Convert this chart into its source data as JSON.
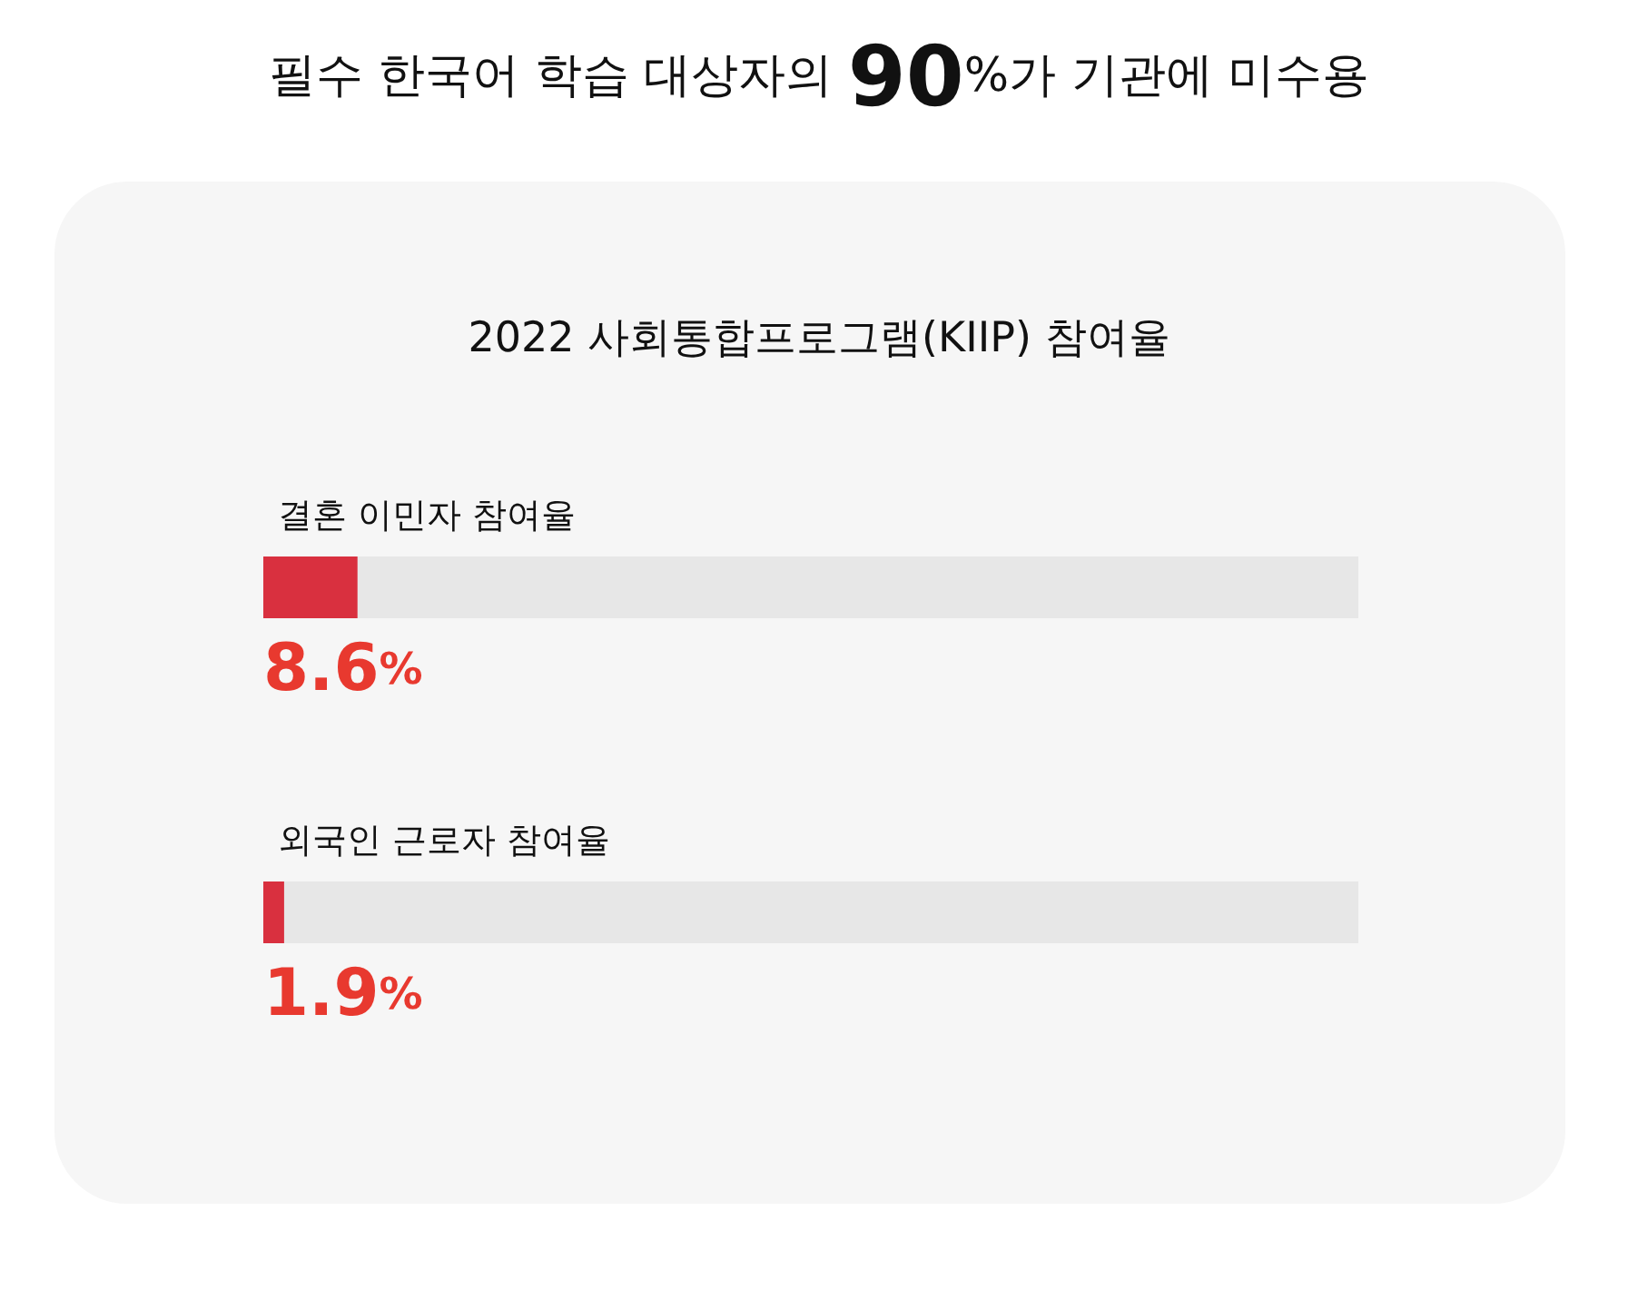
{
  "chart_data": {
    "type": "bar",
    "orientation": "horizontal",
    "title": "필수 한국어 학습 대상자의 90%가 기관에 미수용",
    "subtitle": "2022 사회통합프로그램(KIIP) 참여율",
    "categories": [
      "결혼 이민자 참여율",
      "외국인 근로자 참여율"
    ],
    "values": [
      8.6,
      1.9
    ],
    "color": "#d9303f",
    "value_labels": [
      "8.6%",
      "1.9%"
    ],
    "xlim": [
      0,
      100
    ],
    "tick_labels": "y"
  }
}
